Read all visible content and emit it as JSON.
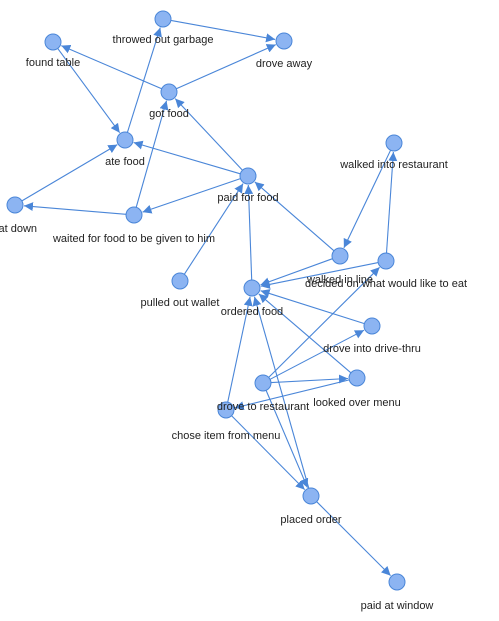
{
  "colors": {
    "edge": "#4a86d8",
    "node_fill": "#8cb4f2",
    "node_stroke": "#4a86d8",
    "label": "#222222"
  },
  "nodes": [
    {
      "id": "throwed_out_garbage",
      "label": "throwed out garbage"
    },
    {
      "id": "found_table",
      "label": "found table"
    },
    {
      "id": "drove_away",
      "label": "drove away"
    },
    {
      "id": "got_food",
      "label": "got food"
    },
    {
      "id": "ate_food",
      "label": "ate food"
    },
    {
      "id": "walked_into_restaurant",
      "label": "walked into restaurant"
    },
    {
      "id": "paid_for_food",
      "label": "paid for food"
    },
    {
      "id": "sat_down",
      "label": "sat down"
    },
    {
      "id": "waited_for_food",
      "label": "waited for food to be given to him"
    },
    {
      "id": "walked_in_line",
      "label": "walked in line"
    },
    {
      "id": "decided",
      "label": "decided on what would like to eat"
    },
    {
      "id": "pulled_out_wallet",
      "label": "pulled out wallet"
    },
    {
      "id": "ordered_food",
      "label": "ordered food"
    },
    {
      "id": "drove_into_drive_thru",
      "label": "drove into drive-thru"
    },
    {
      "id": "drove_to_restaurant",
      "label": "drove to restaurant"
    },
    {
      "id": "looked_over_menu",
      "label": "looked over menu"
    },
    {
      "id": "chose_item_from_menu",
      "label": "chose item from menu"
    },
    {
      "id": "placed_order",
      "label": "placed order"
    },
    {
      "id": "paid_at_window",
      "label": "paid at window"
    }
  ],
  "edges": [
    [
      "throwed_out_garbage",
      "drove_away"
    ],
    [
      "got_food",
      "drove_away"
    ],
    [
      "ate_food",
      "throwed_out_garbage"
    ],
    [
      "found_table",
      "ate_food"
    ],
    [
      "got_food",
      "found_table"
    ],
    [
      "waited_for_food",
      "got_food"
    ],
    [
      "paid_for_food",
      "ate_food"
    ],
    [
      "paid_for_food",
      "got_food"
    ],
    [
      "paid_for_food",
      "waited_for_food"
    ],
    [
      "sat_down",
      "ate_food"
    ],
    [
      "waited_for_food",
      "sat_down"
    ],
    [
      "walked_into_restaurant",
      "walked_in_line"
    ],
    [
      "decided",
      "walked_into_restaurant"
    ],
    [
      "walked_in_line",
      "paid_for_food"
    ],
    [
      "walked_in_line",
      "ordered_food"
    ],
    [
      "decided",
      "ordered_food"
    ],
    [
      "pulled_out_wallet",
      "paid_for_food"
    ],
    [
      "ordered_food",
      "paid_for_food"
    ],
    [
      "drove_into_drive_thru",
      "ordered_food"
    ],
    [
      "drove_to_restaurant",
      "drove_into_drive_thru"
    ],
    [
      "drove_to_restaurant",
      "looked_over_menu"
    ],
    [
      "drove_to_restaurant",
      "decided"
    ],
    [
      "looked_over_menu",
      "ordered_food"
    ],
    [
      "looked_over_menu",
      "chose_item_from_menu"
    ],
    [
      "chose_item_from_menu",
      "ordered_food"
    ],
    [
      "chose_item_from_menu",
      "placed_order"
    ],
    [
      "placed_order",
      "ordered_food"
    ],
    [
      "drove_to_restaurant",
      "placed_order"
    ],
    [
      "placed_order",
      "paid_at_window"
    ]
  ]
}
